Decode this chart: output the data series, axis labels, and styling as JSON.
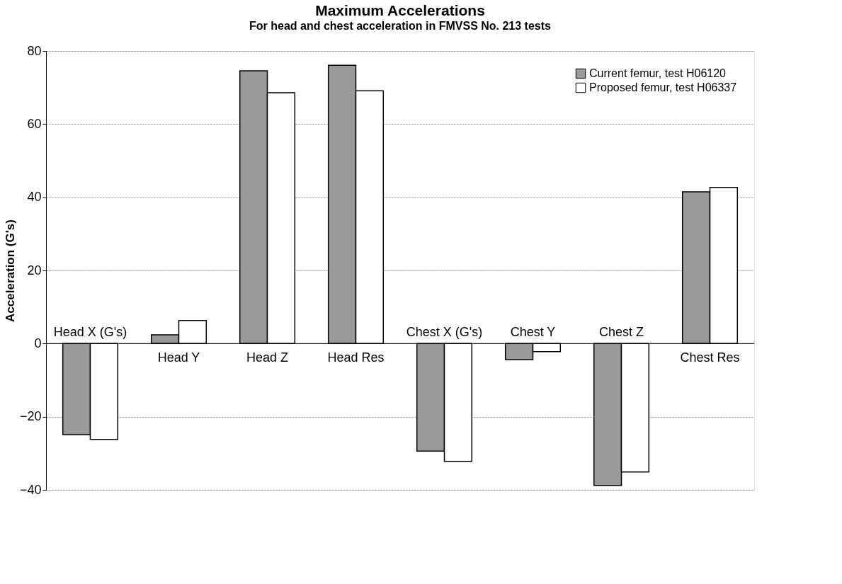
{
  "chart_data": {
    "type": "bar",
    "title": "Maximum Accelerations",
    "subtitle": "For head and chest acceleration in FMVSS No. 213 tests",
    "ylabel": "Acceleration (G's)",
    "categories": [
      "Head X (G's)",
      "Head Y",
      "Head Z",
      "Head Res",
      "Chest X (G's)",
      "Chest Y",
      "Chest Z",
      "Chest Res"
    ],
    "series": [
      {
        "name": "Current femur, test H06120",
        "color": "#999999",
        "values": [
          -24.9,
          2.4,
          74.6,
          76.1,
          -29.4,
          -4.4,
          -38.8,
          41.5
        ]
      },
      {
        "name": "Proposed femur, test H06337",
        "color": "#ffffff",
        "values": [
          -26.2,
          6.3,
          68.6,
          69.1,
          -32.2,
          -2.2,
          -35.1,
          42.7
        ]
      }
    ],
    "ylim": [
      -40,
      80
    ],
    "yticks": [
      -40,
      -20,
      0,
      20,
      40,
      60,
      80
    ],
    "grid": "y",
    "legend": "top right"
  }
}
